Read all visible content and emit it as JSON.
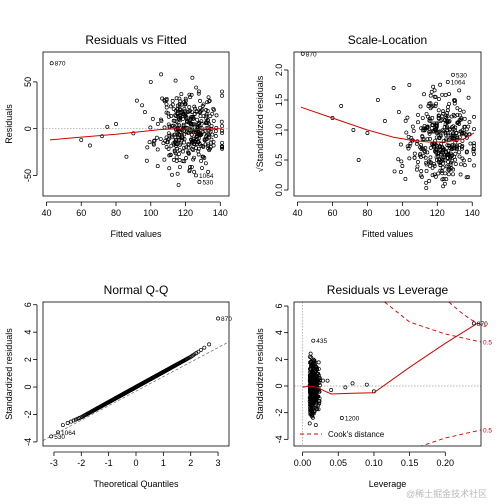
{
  "chart_data": [
    {
      "type": "scatter",
      "title": "Residuals vs Fitted",
      "xlabel": "Fitted values",
      "ylabel": "Residuals",
      "xlim": [
        38,
        145
      ],
      "ylim": [
        -72,
        82
      ],
      "xticks": [
        40,
        60,
        80,
        100,
        120,
        140
      ],
      "yticks": [
        -50,
        0,
        50
      ],
      "reference_line": {
        "y": 0,
        "style": "dotted"
      },
      "smooth_line": {
        "color": "#d40000",
        "x": [
          42,
          60,
          80,
          95,
          105,
          115,
          125,
          135,
          141
        ],
        "y": [
          -12,
          -9,
          -6,
          -3,
          -1,
          0,
          -1,
          0,
          0
        ]
      },
      "labeled_points": [
        {
          "label": "870",
          "x": 43,
          "y": 70
        },
        {
          "label": "1064",
          "x": 126,
          "y": -50
        },
        {
          "label": "530",
          "x": 128,
          "y": -57
        }
      ],
      "cloud": {
        "n": 380,
        "x_center": 122,
        "x_spread": 9,
        "y_spread": 20
      }
    },
    {
      "type": "scatter",
      "title": "Scale-Location",
      "xlabel": "Fitted values",
      "ylabel": "√Standardized residuals",
      "xlim": [
        38,
        145
      ],
      "ylim": [
        -0.1,
        2.3
      ],
      "xticks": [
        40,
        60,
        80,
        100,
        120,
        140
      ],
      "yticks": [
        0.0,
        0.5,
        1.0,
        1.5,
        2.0
      ],
      "ytick_labels": [
        "0.0",
        "0.5",
        "1.0",
        "1.5",
        "2.0"
      ],
      "smooth_line": {
        "color": "#d40000",
        "x": [
          42,
          60,
          80,
          95,
          105,
          115,
          125,
          135,
          141
        ],
        "y": [
          1.38,
          1.2,
          1.0,
          0.88,
          0.83,
          0.8,
          0.8,
          0.85,
          0.95
        ]
      },
      "labeled_points": [
        {
          "label": "870",
          "x": 43,
          "y": 2.27
        },
        {
          "label": "530",
          "x": 129,
          "y": 1.92
        },
        {
          "label": "1064",
          "x": 126,
          "y": 1.8
        }
      ],
      "cloud": {
        "n": 380,
        "x_center": 122,
        "x_spread": 9
      }
    },
    {
      "type": "scatter",
      "title": "Normal Q-Q",
      "xlabel": "Theoretical Quantiles",
      "ylabel": "Standardized residuals",
      "xlim": [
        -3.4,
        3.4
      ],
      "ylim": [
        -4.3,
        6.2
      ],
      "xticks": [
        -3,
        -2,
        -1,
        0,
        1,
        2,
        3
      ],
      "yticks": [
        -4,
        -2,
        0,
        2,
        4,
        6
      ],
      "reference_line": {
        "x": [
          -3.4,
          3.4
        ],
        "y": [
          -3.9,
          3.3
        ],
        "style": "dashed"
      },
      "labeled_points": [
        {
          "label": "870",
          "x": 3.0,
          "y": 5.0
        },
        {
          "label": "1064",
          "x": -2.85,
          "y": -3.3
        },
        {
          "label": "530",
          "x": -3.1,
          "y": -3.6
        }
      ],
      "cloud": {
        "n": 400,
        "slope": 1.1
      }
    },
    {
      "type": "scatter",
      "title": "Residuals vs Leverage",
      "xlabel": "Leverage",
      "ylabel": "Standardized residuals",
      "xlim": [
        -0.012,
        0.25
      ],
      "ylim": [
        -4.5,
        6.3
      ],
      "xticks": [
        0.0,
        0.05,
        0.1,
        0.15,
        0.2
      ],
      "xtick_labels": [
        "0.00",
        "0.05",
        "0.10",
        "0.15",
        "0.20"
      ],
      "yticks": [
        -4,
        -2,
        0,
        2,
        4,
        6
      ],
      "reference_lines": [
        {
          "y": 0,
          "style": "dotted"
        },
        {
          "x": 0,
          "style": "dotted"
        }
      ],
      "smooth_line": {
        "color": "#d40000",
        "x": [
          0,
          0.01,
          0.02,
          0.04,
          0.07,
          0.1,
          0.15,
          0.2,
          0.245
        ],
        "y": [
          -0.1,
          0.0,
          -0.1,
          -0.6,
          -0.55,
          -0.5,
          1.4,
          3.2,
          4.7
        ]
      },
      "cooks_distance": {
        "legend": "Cook's distance",
        "contours": [
          {
            "label": "1",
            "x": [
              0.205,
              0.22,
              0.235,
              0.25
            ],
            "y": [
              6.3,
              5.6,
              5.0,
              4.6
            ]
          },
          {
            "label": "0.5",
            "x": [
              0.115,
              0.15,
              0.2,
              0.25
            ],
            "y": [
              6.3,
              4.8,
              3.9,
              3.3
            ]
          },
          {
            "label": "0.5",
            "x": [
              0.115,
              0.15,
              0.2,
              0.25
            ],
            "y": [
              -6.3,
              -4.8,
              -3.9,
              -3.3
            ]
          }
        ],
        "label_positions": [
          {
            "label": "1",
            "y": 4.6
          },
          {
            "label": "0.5",
            "y": 3.3
          },
          {
            "label": "0.5",
            "y": -3.3
          }
        ]
      },
      "labeled_points": [
        {
          "label": "870",
          "x": 0.24,
          "y": 4.7
        },
        {
          "label": "435",
          "x": 0.015,
          "y": 3.4
        },
        {
          "label": "1200",
          "x": 0.055,
          "y": -2.4
        }
      ],
      "cloud": {
        "n": 380,
        "x_center": 0.01,
        "x_spread": 0.006
      }
    }
  ],
  "watermark": "@稀土掘金技术社区"
}
